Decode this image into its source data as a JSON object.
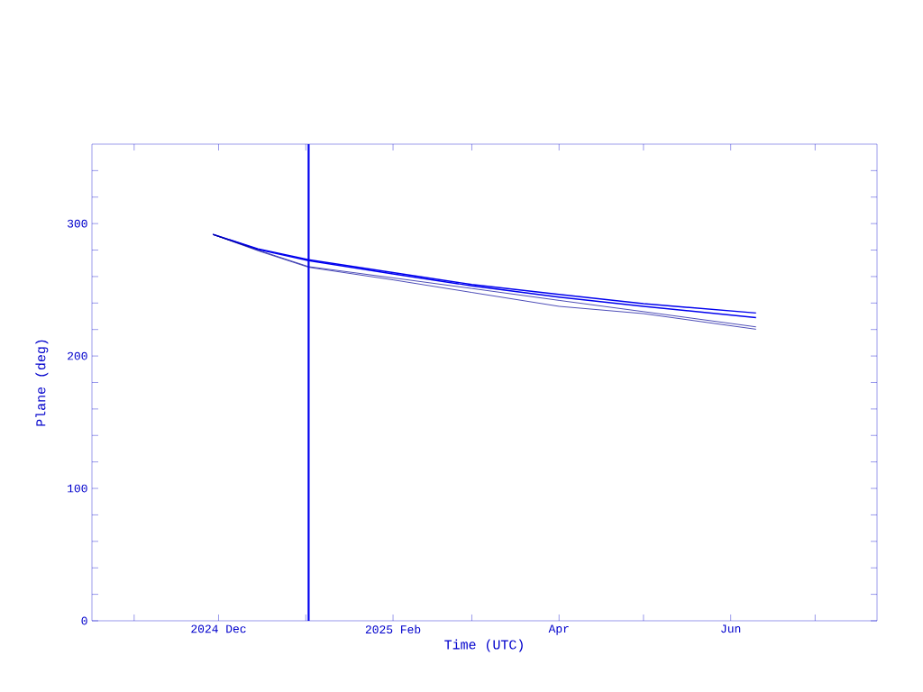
{
  "chart_data": {
    "type": "line",
    "xlabel": "Time (UTC)",
    "ylabel": "Plane (deg)",
    "xlim": [
      "2024-10-17",
      "2025-07-23"
    ],
    "xticks": [
      {
        "value": "2024-11-01",
        "label": null
      },
      {
        "value": "2024-12-01",
        "label": "2024 Dec"
      },
      {
        "value": "2025-01-01",
        "label": null
      },
      {
        "value": "2025-02-01",
        "label": "2025 Feb"
      },
      {
        "value": "2025-03-01",
        "label": null
      },
      {
        "value": "2025-04-01",
        "label": "Apr"
      },
      {
        "value": "2025-05-01",
        "label": null
      },
      {
        "value": "2025-06-01",
        "label": "Jun"
      },
      {
        "value": "2025-07-01",
        "label": null
      }
    ],
    "ylim": [
      0,
      360
    ],
    "yticks": [
      0,
      {
        "value": 20,
        "label": null
      },
      {
        "value": 40,
        "label": null
      },
      {
        "value": 60,
        "label": null
      },
      {
        "value": 80,
        "label": null
      },
      100,
      {
        "value": 120,
        "label": null
      },
      {
        "value": 140,
        "label": null
      },
      {
        "value": 160,
        "label": null
      },
      {
        "value": 180,
        "label": null
      },
      200,
      {
        "value": 220,
        "label": null
      },
      {
        "value": 240,
        "label": null
      },
      {
        "value": 260,
        "label": null
      },
      {
        "value": 280,
        "label": null
      },
      300,
      {
        "value": 320,
        "label": null
      },
      {
        "value": 340,
        "label": null
      }
    ],
    "x": [
      "2024-11-29",
      "2024-12-15",
      "2025-01-02",
      "2025-02-01",
      "2025-03-01",
      "2025-04-01",
      "2025-05-01",
      "2025-06-10"
    ],
    "series": [
      {
        "color": "#0000ee",
        "values": [
          291.8,
          281,
          272.7,
          263,
          254,
          246.5,
          239.5,
          232.5
        ]
      },
      {
        "color": "#0000ee",
        "values": [
          291.8,
          280.5,
          272,
          262,
          253,
          244.5,
          237.5,
          229
        ]
      },
      {
        "color": "#000099",
        "values": [
          291.8,
          280,
          267.5,
          259,
          251,
          242,
          233.5,
          222
        ]
      },
      {
        "color": "#000099",
        "values": [
          291.8,
          279.5,
          267,
          257.5,
          248,
          237.5,
          232,
          220.2
        ]
      }
    ],
    "ref_lines": [
      {
        "axis": "x",
        "value": "2025-01-02",
        "color": "#0000ee"
      }
    ],
    "grid": false
  }
}
